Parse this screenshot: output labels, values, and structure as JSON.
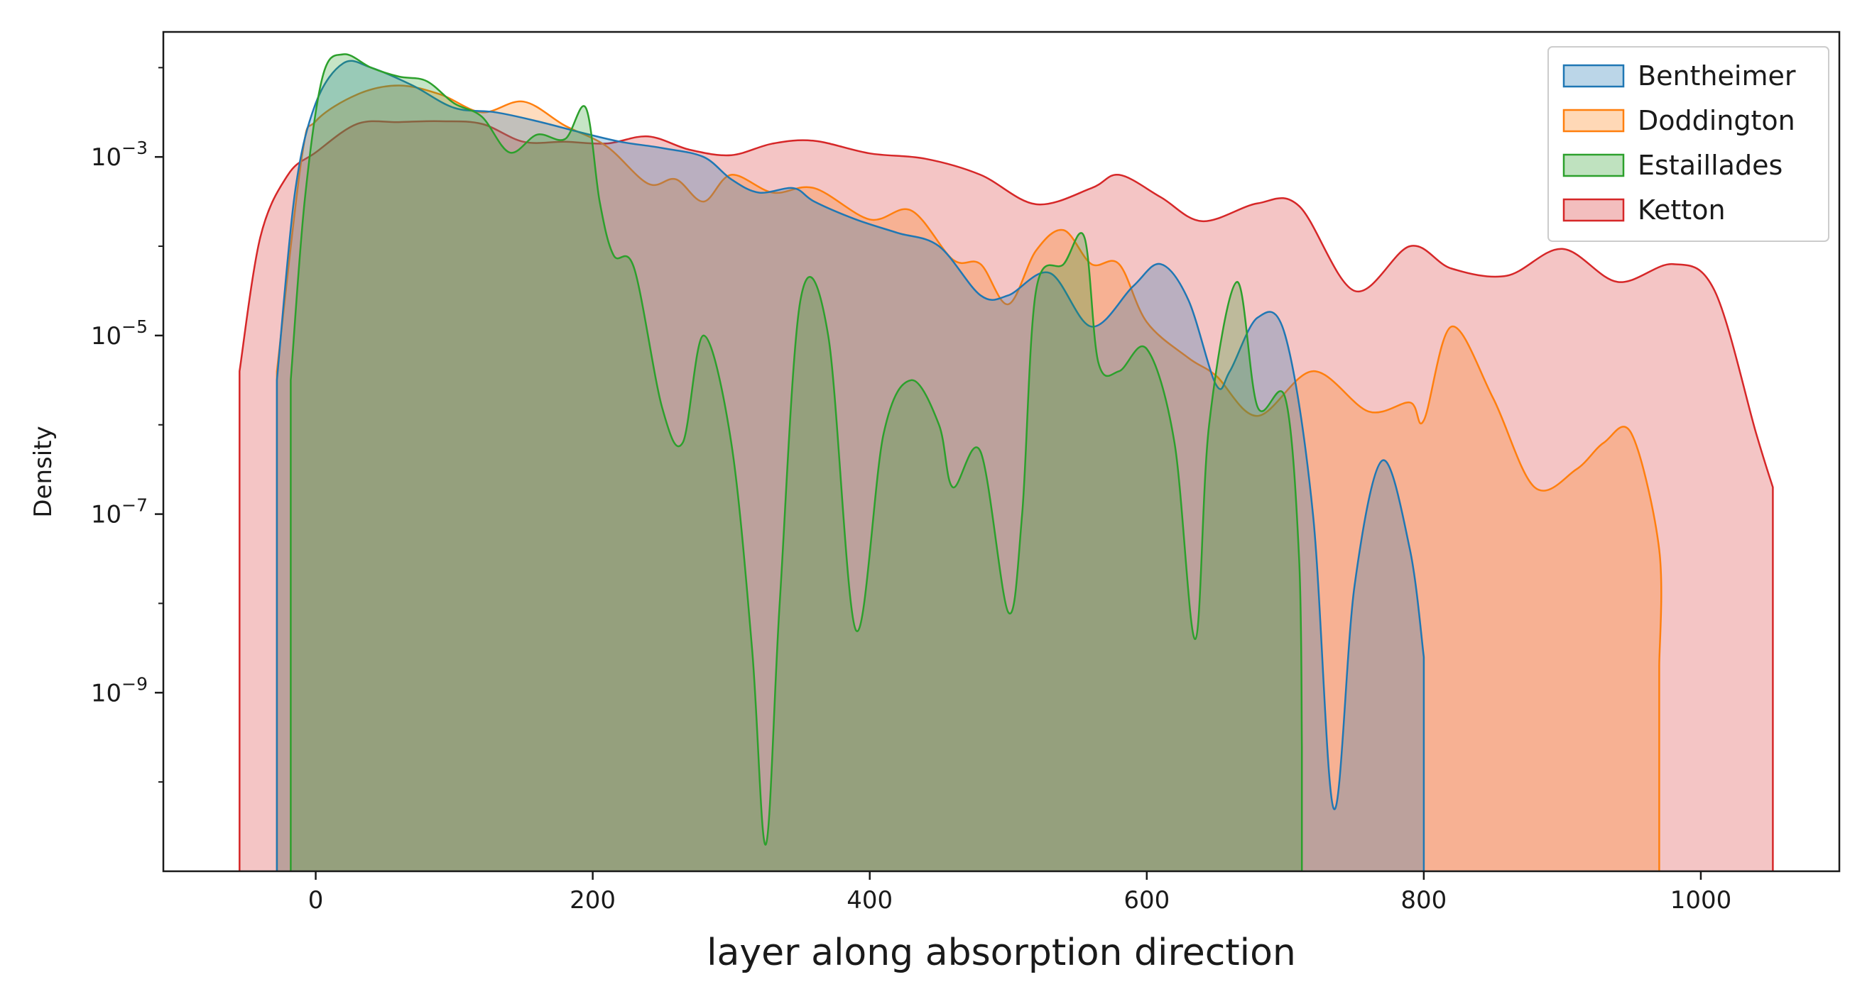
{
  "chart_data": {
    "type": "area",
    "title": "",
    "xlabel": "layer along absorption direction",
    "ylabel": "Density",
    "xlim": [
      -110,
      1100
    ],
    "yscale": "log",
    "ylim_exponent": [
      -11.0,
      -1.6
    ],
    "x_ticks": [
      {
        "value": 0,
        "label": "0"
      },
      {
        "value": 200,
        "label": "200"
      },
      {
        "value": 400,
        "label": "400"
      },
      {
        "value": 600,
        "label": "600"
      },
      {
        "value": 800,
        "label": "800"
      },
      {
        "value": 1000,
        "label": "1000"
      }
    ],
    "y_ticks": [
      {
        "exp": -3,
        "base": "10",
        "sup": "−3"
      },
      {
        "exp": -5,
        "base": "10",
        "sup": "−5"
      },
      {
        "exp": -7,
        "base": "10",
        "sup": "−7"
      },
      {
        "exp": -9,
        "base": "10",
        "sup": "−9"
      }
    ],
    "grid": false,
    "legend_position": "top-right",
    "series": [
      {
        "name": "Ketton",
        "color": "#d62728",
        "points": [
          [
            -55,
            -5.4
          ],
          [
            -40,
            -3.9
          ],
          [
            -20,
            -3.2
          ],
          [
            0,
            -2.95
          ],
          [
            30,
            -2.63
          ],
          [
            60,
            -2.61
          ],
          [
            90,
            -2.6
          ],
          [
            120,
            -2.63
          ],
          [
            150,
            -2.83
          ],
          [
            180,
            -2.83
          ],
          [
            210,
            -2.85
          ],
          [
            240,
            -2.77
          ],
          [
            270,
            -2.92
          ],
          [
            300,
            -2.98
          ],
          [
            330,
            -2.85
          ],
          [
            360,
            -2.82
          ],
          [
            400,
            -2.96
          ],
          [
            440,
            -3.02
          ],
          [
            480,
            -3.2
          ],
          [
            520,
            -3.53
          ],
          [
            560,
            -3.35
          ],
          [
            580,
            -3.2
          ],
          [
            610,
            -3.45
          ],
          [
            640,
            -3.72
          ],
          [
            680,
            -3.52
          ],
          [
            710,
            -3.55
          ],
          [
            750,
            -4.5
          ],
          [
            790,
            -4.0
          ],
          [
            820,
            -4.25
          ],
          [
            860,
            -4.33
          ],
          [
            900,
            -4.03
          ],
          [
            940,
            -4.4
          ],
          [
            980,
            -4.2
          ],
          [
            1010,
            -4.5
          ],
          [
            1040,
            -6.1
          ],
          [
            1052,
            -6.7
          ]
        ]
      },
      {
        "name": "Doddington",
        "color": "#ff7f0e",
        "points": [
          [
            -28,
            -5.4
          ],
          [
            -10,
            -3.0
          ],
          [
            0,
            -2.6
          ],
          [
            30,
            -2.3
          ],
          [
            60,
            -2.2
          ],
          [
            90,
            -2.3
          ],
          [
            120,
            -2.5
          ],
          [
            150,
            -2.38
          ],
          [
            180,
            -2.65
          ],
          [
            210,
            -2.88
          ],
          [
            240,
            -3.3
          ],
          [
            260,
            -3.25
          ],
          [
            280,
            -3.5
          ],
          [
            300,
            -3.2
          ],
          [
            330,
            -3.4
          ],
          [
            360,
            -3.35
          ],
          [
            400,
            -3.7
          ],
          [
            430,
            -3.6
          ],
          [
            460,
            -4.15
          ],
          [
            480,
            -4.2
          ],
          [
            500,
            -4.65
          ],
          [
            520,
            -4.05
          ],
          [
            540,
            -3.82
          ],
          [
            560,
            -4.2
          ],
          [
            580,
            -4.2
          ],
          [
            600,
            -4.85
          ],
          [
            630,
            -5.25
          ],
          [
            650,
            -5.45
          ],
          [
            680,
            -5.9
          ],
          [
            720,
            -5.4
          ],
          [
            760,
            -5.85
          ],
          [
            790,
            -5.75
          ],
          [
            800,
            -5.95
          ],
          [
            820,
            -4.9
          ],
          [
            850,
            -5.7
          ],
          [
            880,
            -6.7
          ],
          [
            910,
            -6.5
          ],
          [
            930,
            -6.2
          ],
          [
            950,
            -6.1
          ],
          [
            970,
            -7.4
          ],
          [
            970,
            -8.7
          ]
        ]
      },
      {
        "name": "Bentheimer",
        "color": "#1f77b4",
        "points": [
          [
            -28,
            -5.5
          ],
          [
            -15,
            -3.4
          ],
          [
            0,
            -2.4
          ],
          [
            20,
            -1.95
          ],
          [
            40,
            -2.0
          ],
          [
            70,
            -2.2
          ],
          [
            100,
            -2.45
          ],
          [
            130,
            -2.5
          ],
          [
            160,
            -2.6
          ],
          [
            190,
            -2.72
          ],
          [
            220,
            -2.83
          ],
          [
            250,
            -2.9
          ],
          [
            280,
            -3.0
          ],
          [
            300,
            -3.25
          ],
          [
            320,
            -3.4
          ],
          [
            345,
            -3.35
          ],
          [
            360,
            -3.5
          ],
          [
            390,
            -3.7
          ],
          [
            420,
            -3.85
          ],
          [
            450,
            -4.0
          ],
          [
            480,
            -4.55
          ],
          [
            500,
            -4.55
          ],
          [
            530,
            -4.3
          ],
          [
            560,
            -4.9
          ],
          [
            590,
            -4.45
          ],
          [
            610,
            -4.2
          ],
          [
            630,
            -4.6
          ],
          [
            650,
            -5.55
          ],
          [
            660,
            -5.4
          ],
          [
            680,
            -4.8
          ],
          [
            700,
            -5.0
          ],
          [
            720,
            -7.0
          ],
          [
            735,
            -10.3
          ],
          [
            750,
            -7.8
          ],
          [
            770,
            -6.4
          ],
          [
            790,
            -7.4
          ],
          [
            800,
            -8.6
          ]
        ]
      },
      {
        "name": "Estaillades",
        "color": "#2ca02c",
        "points": [
          [
            -18,
            -5.5
          ],
          [
            -8,
            -3.5
          ],
          [
            5,
            -2.1
          ],
          [
            20,
            -1.85
          ],
          [
            40,
            -2.0
          ],
          [
            60,
            -2.1
          ],
          [
            80,
            -2.15
          ],
          [
            100,
            -2.4
          ],
          [
            120,
            -2.55
          ],
          [
            140,
            -2.95
          ],
          [
            160,
            -2.75
          ],
          [
            180,
            -2.8
          ],
          [
            195,
            -2.45
          ],
          [
            205,
            -3.5
          ],
          [
            215,
            -4.1
          ],
          [
            230,
            -4.25
          ],
          [
            250,
            -5.8
          ],
          [
            265,
            -6.2
          ],
          [
            280,
            -5.0
          ],
          [
            300,
            -6.2
          ],
          [
            315,
            -8.5
          ],
          [
            325,
            -10.7
          ],
          [
            335,
            -8.0
          ],
          [
            350,
            -4.6
          ],
          [
            370,
            -5.0
          ],
          [
            390,
            -8.3
          ],
          [
            410,
            -6.1
          ],
          [
            430,
            -5.5
          ],
          [
            450,
            -6.0
          ],
          [
            460,
            -6.7
          ],
          [
            480,
            -6.3
          ],
          [
            500,
            -8.1
          ],
          [
            510,
            -7.0
          ],
          [
            520,
            -4.5
          ],
          [
            540,
            -4.2
          ],
          [
            555,
            -3.9
          ],
          [
            565,
            -5.3
          ],
          [
            580,
            -5.4
          ],
          [
            600,
            -5.15
          ],
          [
            620,
            -6.2
          ],
          [
            635,
            -8.4
          ],
          [
            645,
            -6.0
          ],
          [
            665,
            -4.4
          ],
          [
            680,
            -5.8
          ],
          [
            700,
            -5.7
          ],
          [
            710,
            -7.5
          ],
          [
            712,
            -9.6
          ]
        ]
      }
    ]
  }
}
